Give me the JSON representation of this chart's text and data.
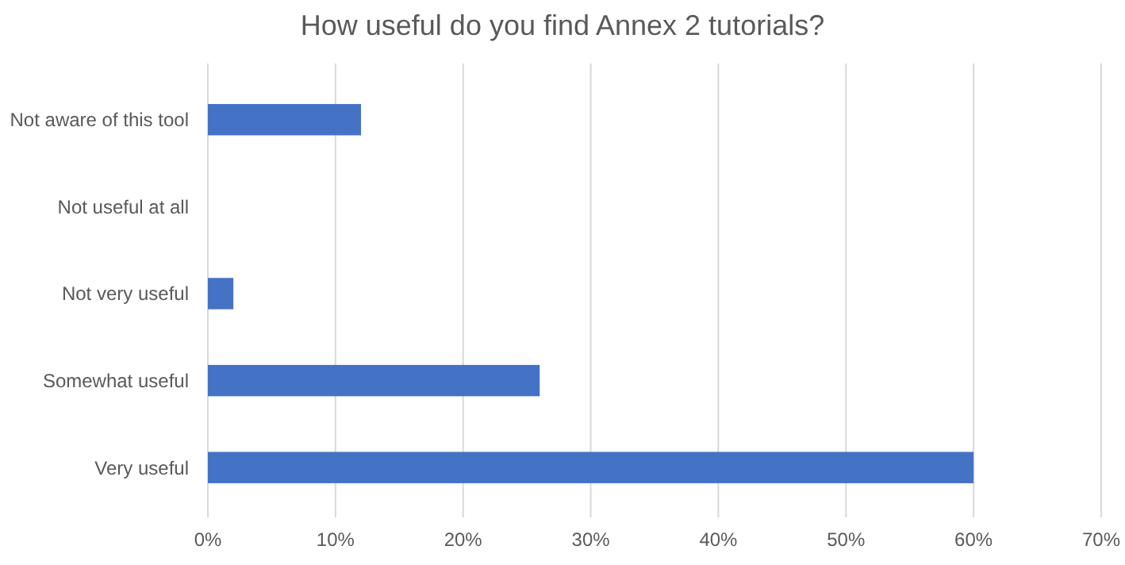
{
  "chart_data": {
    "type": "bar",
    "orientation": "horizontal",
    "title": "How useful do you find Annex 2 tutorials?",
    "categories": [
      "Not aware of this tool",
      "Not useful at all",
      "Not very useful",
      "Somewhat useful",
      "Very useful"
    ],
    "values": [
      12,
      0,
      2,
      26,
      60
    ],
    "color": "#4472c4",
    "xlim": [
      0,
      70
    ],
    "xticks": [
      {
        "value": 0,
        "label": "0%"
      },
      {
        "value": 10,
        "label": "10%"
      },
      {
        "value": 20,
        "label": "20%"
      },
      {
        "value": 30,
        "label": "30%"
      },
      {
        "value": 40,
        "label": "40%"
      },
      {
        "value": 50,
        "label": "50%"
      },
      {
        "value": 60,
        "label": "60%"
      },
      {
        "value": 70,
        "label": "70%"
      }
    ],
    "grid": "x"
  }
}
